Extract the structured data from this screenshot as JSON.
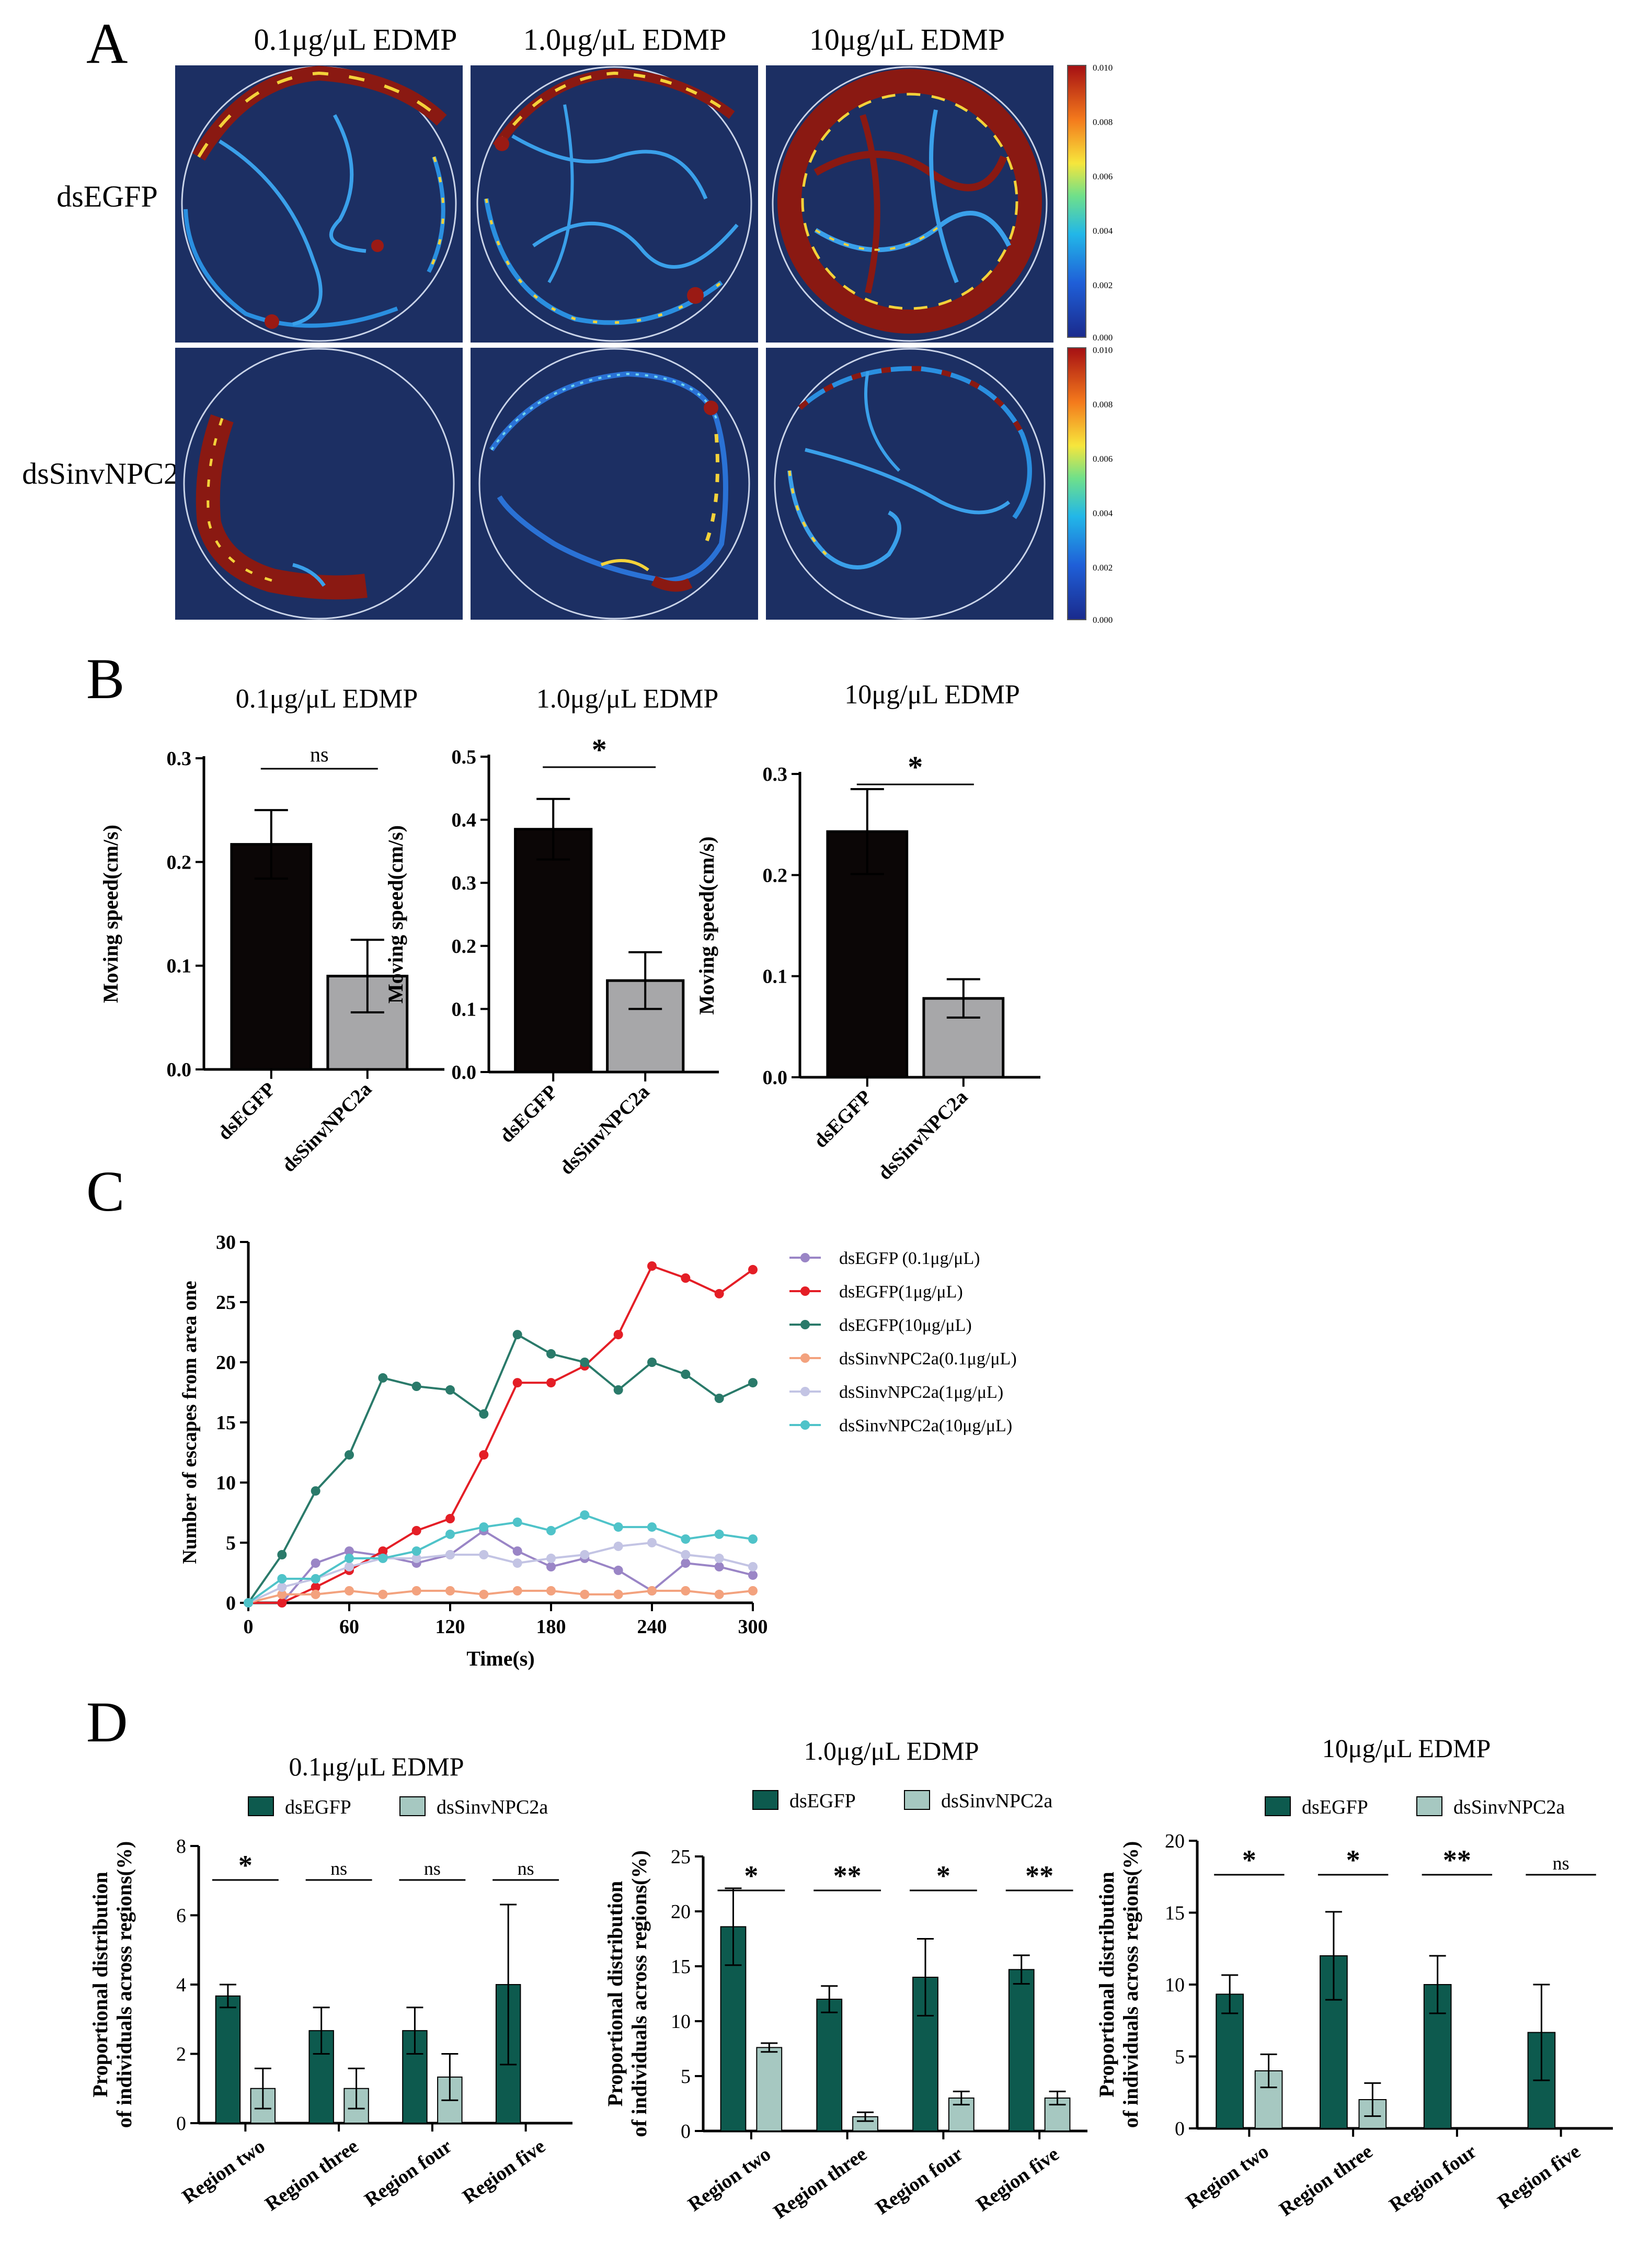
{
  "panel_letters": {
    "a": "A",
    "b": "B",
    "c": "C",
    "d": "D"
  },
  "colors": {
    "heatmap_bg": "#1c2f63",
    "bar_black": "#0b0606",
    "bar_gray": "#a7a7a9",
    "teal_dark": "#0d5a4e",
    "teal_light": "#a6c8c1",
    "line_purple": "#9a85c6",
    "line_red": "#e41e26",
    "line_teal": "#2a7a6a",
    "line_orange": "#f3a27e",
    "line_lavender": "#c3c4e4",
    "line_cyan": "#4fc3c9"
  },
  "panelA": {
    "col_titles": [
      "0.1μg/μL EDMP",
      "1.0μg/μL EDMP",
      "10μg/μL EDMP"
    ],
    "row_labels": [
      "dsEGFP",
      "dsSinvNPC2a"
    ],
    "colorbar_ticks": [
      "0.010",
      "0.008",
      "0.006",
      "0.004",
      "0.002",
      "0.000"
    ]
  },
  "chart_data": [
    {
      "type": "bar",
      "panel": "B1",
      "title": "0.1μg/μL EDMP",
      "ylabel": "Moving speed(cm/s)",
      "categories": [
        "dsEGFP",
        "dsSinvNPC2a"
      ],
      "values": [
        0.217,
        0.09
      ],
      "errors": [
        0.033,
        0.035
      ],
      "ylim": [
        0,
        0.3
      ],
      "yticks": [
        "0.0",
        "0.1",
        "0.2",
        "0.3"
      ],
      "yticks_num": [
        0,
        0.1,
        0.2,
        0.3
      ],
      "significance": "ns"
    },
    {
      "type": "bar",
      "panel": "B2",
      "title": "1.0μg/μL EDMP",
      "ylabel": "Moving speed(cm/s)",
      "categories": [
        "dsEGFP",
        "dsSinvNPC2a"
      ],
      "values": [
        0.385,
        0.145
      ],
      "errors": [
        0.048,
        0.045
      ],
      "ylim": [
        0,
        0.5
      ],
      "yticks": [
        "0.0",
        "0.1",
        "0.2",
        "0.3",
        "0.4",
        "0.5"
      ],
      "yticks_num": [
        0,
        0.1,
        0.2,
        0.3,
        0.4,
        0.5
      ],
      "significance": "*"
    },
    {
      "type": "bar",
      "panel": "B3",
      "title": "10μg/μL EDMP",
      "ylabel": "Moving speed(cm/s)",
      "categories": [
        "dsEGFP",
        "dsSinvNPC2a"
      ],
      "values": [
        0.243,
        0.078
      ],
      "errors": [
        0.042,
        0.019
      ],
      "ylim": [
        0,
        0.3
      ],
      "yticks": [
        "0.0",
        "0.1",
        "0.2",
        "0.3"
      ],
      "yticks_num": [
        0,
        0.1,
        0.2,
        0.3
      ],
      "significance": "*"
    },
    {
      "type": "line",
      "panel": "C",
      "xlabel": "Time(s)",
      "ylabel": "Number of escapes from area one",
      "x": [
        0,
        20,
        40,
        60,
        80,
        100,
        120,
        140,
        160,
        180,
        200,
        220,
        240,
        260,
        280,
        300
      ],
      "xticks": [
        "0",
        "60",
        "120",
        "180",
        "240",
        "300"
      ],
      "xticks_num": [
        0,
        60,
        120,
        180,
        240,
        300
      ],
      "yticks": [
        "0",
        "5",
        "10",
        "15",
        "20",
        "25",
        "30"
      ],
      "yticks_num": [
        0,
        5,
        10,
        15,
        20,
        25,
        30
      ],
      "xlim": [
        0,
        300
      ],
      "ylim": [
        0,
        30
      ],
      "series": [
        {
          "name": "dsEGFP (0.1μg/μL)",
          "color": "#9a85c6",
          "values": [
            0,
            0,
            3.3,
            4.3,
            3.9,
            3.3,
            4.0,
            6.0,
            4.3,
            3.0,
            3.7,
            2.7,
            1.0,
            3.3,
            3.0,
            2.3
          ]
        },
        {
          "name": "dsEGFP(1μg/μL)",
          "color": "#e41e26",
          "values": [
            0,
            0,
            1.3,
            2.7,
            4.3,
            6.0,
            7.0,
            12.3,
            18.3,
            18.3,
            19.7,
            22.3,
            28.0,
            27.0,
            25.7,
            27.7
          ]
        },
        {
          "name": "dsEGFP(10μg/μL)",
          "color": "#2a7a6a",
          "values": [
            0,
            4.0,
            9.3,
            12.3,
            18.7,
            18.0,
            17.7,
            15.7,
            22.3,
            20.7,
            20.0,
            17.7,
            20.0,
            19.0,
            17.0,
            18.3
          ]
        },
        {
          "name": "dsSinvNPC2a(0.1μg/μL)",
          "color": "#f3a27e",
          "values": [
            0,
            0.7,
            0.7,
            1.0,
            0.7,
            1.0,
            1.0,
            0.7,
            1.0,
            1.0,
            0.7,
            0.7,
            1.0,
            1.0,
            0.7,
            1.0
          ]
        },
        {
          "name": "dsSinvNPC2a(1μg/μL)",
          "color": "#c3c4e4",
          "values": [
            0,
            1.3,
            2.0,
            3.0,
            3.7,
            3.7,
            4.0,
            4.0,
            3.3,
            3.7,
            4.0,
            4.7,
            5.0,
            4.0,
            3.7,
            3.0
          ]
        },
        {
          "name": "dsSinvNPC2a(10μg/μL)",
          "color": "#4fc3c9",
          "values": [
            0,
            2.0,
            2.0,
            3.7,
            3.7,
            4.3,
            5.7,
            6.3,
            6.7,
            6.0,
            7.3,
            6.3,
            6.3,
            5.3,
            5.7,
            5.3
          ]
        }
      ]
    },
    {
      "type": "bar",
      "panel": "D1",
      "title": "0.1μg/μL EDMP",
      "ylabel": "Proportional distribution of individuals across regions(%)",
      "ylabel_lines": [
        "Proportional distribution",
        "of individuals across regions(%)"
      ],
      "categories": [
        "Region two",
        "Region three",
        "Region four",
        "Region five"
      ],
      "series": [
        {
          "name": "dsEGFP",
          "values": [
            3.67,
            2.67,
            2.67,
            4.0
          ],
          "errors": [
            0.33,
            0.67,
            0.67,
            2.31
          ]
        },
        {
          "name": "dsSinvNPC2a",
          "values": [
            1.0,
            1.0,
            1.33,
            0
          ],
          "errors": [
            0.58,
            0.58,
            0.67,
            0
          ]
        }
      ],
      "ylim": [
        0,
        8
      ],
      "yticks": [
        "0",
        "2",
        "4",
        "6",
        "8"
      ],
      "yticks_num": [
        0,
        2,
        4,
        6,
        8
      ],
      "significance": [
        "*",
        "ns",
        "ns",
        "ns"
      ]
    },
    {
      "type": "bar",
      "panel": "D2",
      "title": "1.0μg/μL EDMP",
      "ylabel": "Proportional distribution of individuals across regions(%)",
      "ylabel_lines": [
        "Proportional distribution",
        "of individuals across regions(%)"
      ],
      "categories": [
        "Region two",
        "Region three",
        "Region four",
        "Region five"
      ],
      "series": [
        {
          "name": "dsEGFP",
          "values": [
            18.6,
            12.0,
            14.0,
            14.7
          ],
          "errors": [
            3.5,
            1.2,
            3.5,
            1.3
          ]
        },
        {
          "name": "dsSinvNPC2a",
          "values": [
            7.6,
            1.3,
            3.0,
            3.0
          ],
          "errors": [
            0.4,
            0.4,
            0.6,
            0.6
          ]
        }
      ],
      "ylim": [
        0,
        25
      ],
      "yticks": [
        "0",
        "5",
        "10",
        "15",
        "20",
        "25"
      ],
      "yticks_num": [
        0,
        5,
        10,
        15,
        20,
        25
      ],
      "significance": [
        "*",
        "**",
        "*",
        "**"
      ]
    },
    {
      "type": "bar",
      "panel": "D3",
      "title": "10μg/μL EDMP",
      "ylabel": "Proportional distribution of individuals across regions(%)",
      "ylabel_lines": [
        "Proportional distribution",
        "of individuals across regions(%)"
      ],
      "categories": [
        "Region two",
        "Region three",
        "Region four",
        "Region five"
      ],
      "series": [
        {
          "name": "dsEGFP",
          "values": [
            9.33,
            12.0,
            10.0,
            6.67
          ],
          "errors": [
            1.33,
            3.06,
            2.0,
            3.33
          ]
        },
        {
          "name": "dsSinvNPC2a",
          "values": [
            4.0,
            2.0,
            0,
            0
          ],
          "errors": [
            1.15,
            1.15,
            0,
            0
          ]
        }
      ],
      "ylim": [
        0,
        20
      ],
      "yticks": [
        "0",
        "5",
        "10",
        "15",
        "20"
      ],
      "yticks_num": [
        0,
        5,
        10,
        15,
        20
      ],
      "significance": [
        "*",
        "*",
        "**",
        "ns"
      ]
    }
  ]
}
